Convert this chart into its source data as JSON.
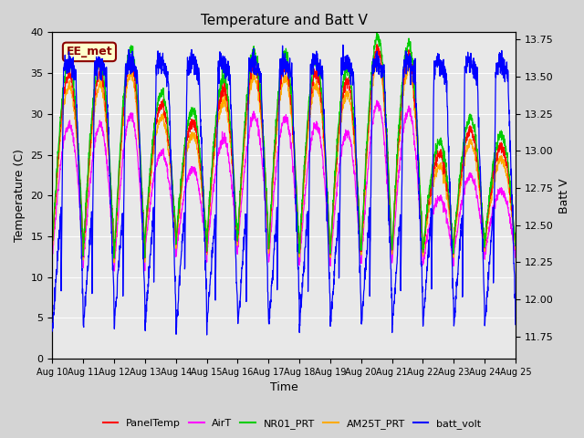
{
  "title": "Temperature and Batt V",
  "xlabel": "Time",
  "ylabel_left": "Temperature (C)",
  "ylabel_right": "Batt V",
  "ylim_left": [
    0,
    40
  ],
  "ylim_right": [
    11.6,
    13.8
  ],
  "xlim": [
    0,
    15
  ],
  "xtick_labels": [
    "Aug 10",
    "Aug 11",
    "Aug 12",
    "Aug 13",
    "Aug 14",
    "Aug 15",
    "Aug 16",
    "Aug 17",
    "Aug 18",
    "Aug 19",
    "Aug 20",
    "Aug 21",
    "Aug 22",
    "Aug 23",
    "Aug 24",
    "Aug 25"
  ],
  "annotation_text": "EE_met",
  "colors": {
    "PanelTemp": "#ff0000",
    "AirT": "#ff00ff",
    "NR01_PRT": "#00cc00",
    "AM25T_PRT": "#ffaa00",
    "batt_volt": "#0000ff"
  },
  "plot_bg_color": "#e8e8e8",
  "fig_bg_color": "#d4d4d4",
  "n_days": 15,
  "n_per_day": 144
}
